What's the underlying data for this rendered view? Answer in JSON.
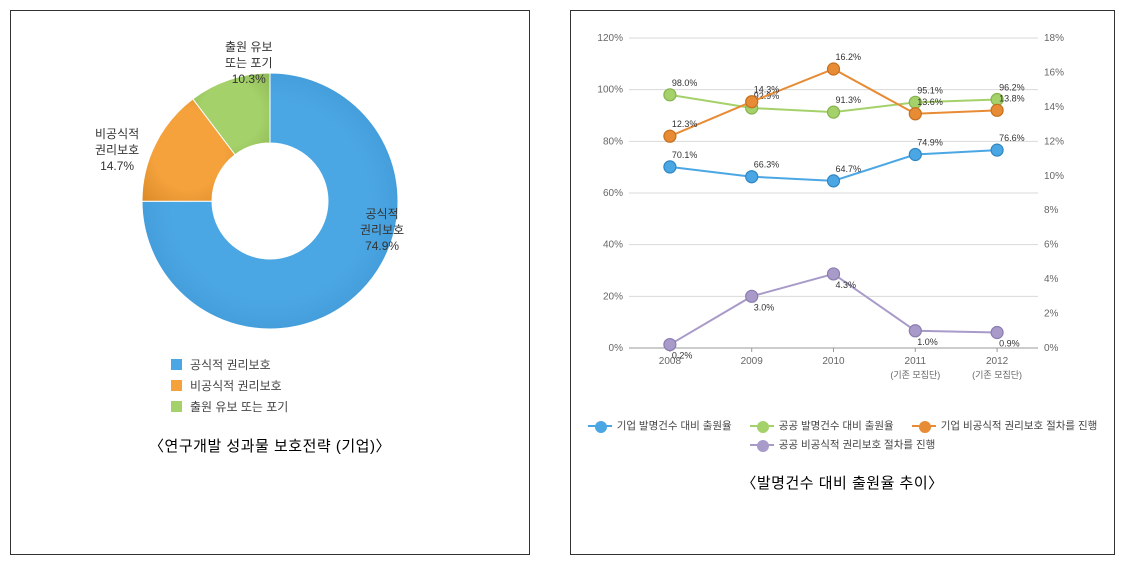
{
  "panel1": {
    "title": "〈연구개발 성과물 보호전략 (기업)〉",
    "type": "donut",
    "inner_radius": 58,
    "outer_radius": 128,
    "background_color": "#ffffff",
    "slices": [
      {
        "label": "공식적\n권리보호",
        "value": 74.9,
        "pct_text": "74.9%",
        "color": "#4ba7e4",
        "color_dark": "#3a8fcc"
      },
      {
        "label": "비공식적\n권리보호",
        "value": 14.7,
        "pct_text": "14.7%",
        "color": "#f5a23c",
        "color_dark": "#d98a28"
      },
      {
        "label": "출원 유보\n또는 포기",
        "value": 10.3,
        "pct_text": "10.3%",
        "color": "#a5d16a",
        "color_dark": "#8eb956"
      }
    ],
    "legend": [
      {
        "label": "공식적 권리보호",
        "color": "#4ba7e4"
      },
      {
        "label": "비공식적 권리보호",
        "color": "#f5a23c"
      },
      {
        "label": "출원 유보 또는 포기",
        "color": "#a5d16a"
      }
    ]
  },
  "panel2": {
    "title": "〈발명건수 대비 출원율 추이〉",
    "type": "line-dual-axis",
    "plot_background": "#ffffff",
    "grid_color": "#d9d9d9",
    "x_categories": [
      "2008",
      "2009",
      "2010",
      "2011",
      "2012"
    ],
    "x_sublabels": [
      "",
      "",
      "",
      "(기존 모집단)",
      "(기존 모집단)"
    ],
    "y_left": {
      "min": 0,
      "max": 120,
      "step": 20,
      "suffix": "%"
    },
    "y_right": {
      "min": 0,
      "max": 18,
      "step": 2,
      "suffix": "%"
    },
    "marker_radius": 6,
    "line_width": 2,
    "series": [
      {
        "name": "기업 발명건수 대비 출원율",
        "axis": "left",
        "color": "#4ba7e4",
        "marker_border": "#2f86c2",
        "points": [
          70.1,
          66.3,
          64.7,
          74.9,
          76.6
        ],
        "labels": [
          "70.1%",
          "66.3%",
          "64.7%",
          "74.9%",
          "76.6%"
        ]
      },
      {
        "name": "공공 발명건수 대비 출원율",
        "axis": "left",
        "color": "#a5d16a",
        "marker_border": "#86b24e",
        "points": [
          98.0,
          92.9,
          91.3,
          95.1,
          96.2
        ],
        "labels": [
          "98.0%",
          "92.9%",
          "91.3%",
          "95.1%",
          "96.2%"
        ]
      },
      {
        "name": "기업 비공식적 권리보호 절차를 진행",
        "axis": "right",
        "color": "#e78b34",
        "marker_border": "#c4701f",
        "points": [
          12.3,
          14.3,
          16.2,
          13.6,
          13.8
        ],
        "labels": [
          "12.3%",
          "14.3%",
          "16.2%",
          "13.6%",
          "13.8%"
        ]
      },
      {
        "name": "공공 비공식적 권리보호 절차를 진행",
        "axis": "right",
        "color": "#a89ac9",
        "marker_border": "#8b7cb0",
        "points": [
          0.2,
          3.0,
          4.3,
          1.0,
          0.9
        ],
        "labels": [
          "0.2%",
          "3.0%",
          "4.3%",
          "1.0%",
          "0.9%"
        ]
      }
    ],
    "legend": [
      {
        "label": "기업 발명건수 대비 출원율",
        "color": "#4ba7e4"
      },
      {
        "label": "공공 발명건수 대비 출원율",
        "color": "#a5d16a"
      },
      {
        "label": "기업 비공식적 권리보호 절차를 진행",
        "color": "#e78b34"
      },
      {
        "label": "공공 비공식적 권리보호 절차를 진행",
        "color": "#a89ac9"
      }
    ]
  }
}
